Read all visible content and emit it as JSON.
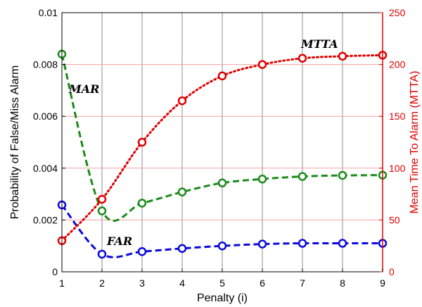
{
  "chart_data": {
    "type": "line",
    "xlabel": "Penalty (i)",
    "ylabel_left": "Probability of False/Miss Alarm",
    "ylabel_right": "Mean Time To Alarm (MTTA)",
    "x": [
      1,
      2,
      3,
      4,
      5,
      6,
      7,
      8,
      9
    ],
    "xlim": [
      1,
      9
    ],
    "ylim_left": [
      0,
      0.01
    ],
    "ylim_right": [
      0,
      250
    ],
    "x_ticks": [
      "1",
      "2",
      "3",
      "4",
      "5",
      "6",
      "7",
      "8",
      "9"
    ],
    "y_left_ticks": [
      "0",
      "0.002",
      "0.004",
      "0.006",
      "0.008",
      "0.01"
    ],
    "y_right_ticks": [
      "0",
      "50",
      "100",
      "150",
      "200",
      "250"
    ],
    "grid": "vertical and right-axis horizontal",
    "series": [
      {
        "name": "MAR",
        "axis": "left",
        "color": "#1a8a1a",
        "style": "dashed",
        "values": [
          0.0084,
          0.00235,
          0.00265,
          0.00308,
          0.00343,
          0.00358,
          0.00368,
          0.00372,
          0.00373
        ]
      },
      {
        "name": "FAR",
        "axis": "left",
        "color": "#0a0adc",
        "style": "dashed",
        "values": [
          0.00258,
          0.00068,
          0.00078,
          0.0009,
          0.001,
          0.00107,
          0.0011,
          0.0011,
          0.0011
        ]
      },
      {
        "name": "MTTA",
        "axis": "right",
        "color": "#e00000",
        "style": "dotted",
        "values": [
          30,
          70,
          125,
          165,
          189,
          200,
          206,
          208,
          209
        ]
      }
    ],
    "annotations": [
      {
        "text": "MAR",
        "series": "MAR"
      },
      {
        "text": "FAR",
        "series": "FAR"
      },
      {
        "text": "MTTA",
        "series": "MTTA"
      }
    ]
  }
}
